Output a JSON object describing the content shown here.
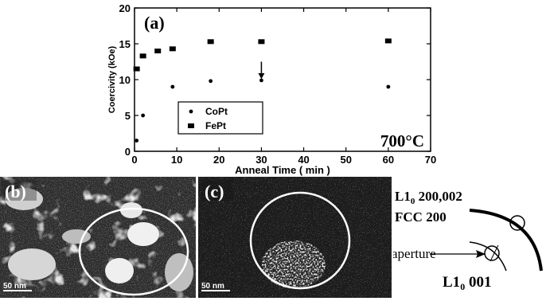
{
  "chart_data": {
    "type": "scatter",
    "panel_label": "(a)",
    "xlabel": "Anneal Time ( min )",
    "ylabel": "Coercivity (kOe)",
    "xlim": [
      0,
      70
    ],
    "ylim": [
      0,
      20
    ],
    "xticks": [
      0,
      10,
      20,
      30,
      40,
      50,
      60,
      70
    ],
    "yticks": [
      0,
      5,
      10,
      15,
      20
    ],
    "annotation": "700°C",
    "legend_position": "bottom-left",
    "series": [
      {
        "name": "CoPt",
        "marker": "circle",
        "points": [
          [
            0.5,
            1.5
          ],
          [
            2,
            5
          ],
          [
            9,
            9
          ],
          [
            18,
            9.8
          ],
          [
            30,
            9.9
          ],
          [
            60,
            9
          ]
        ]
      },
      {
        "name": "FePt",
        "marker": "square",
        "points": [
          [
            0.5,
            11.5
          ],
          [
            2,
            13.3
          ],
          [
            5.5,
            14
          ],
          [
            9,
            14.3
          ],
          [
            18,
            15.3
          ],
          [
            30,
            15.3
          ],
          [
            60,
            15.4
          ]
        ]
      }
    ],
    "arrow_at": [
      30,
      12.5
    ]
  },
  "images": [
    {
      "label": "(b)",
      "scale_bar": "50 nm"
    },
    {
      "label": "(c)",
      "scale_bar": "50 nm"
    }
  ],
  "diffraction_schematic": {
    "ring_labels": [
      "L1",
      "200,002",
      "FCC 200"
    ],
    "l10_sub": "0",
    "aperture_label": "aperture",
    "spot_label": "L1",
    "spot_label_tail": " 001"
  }
}
